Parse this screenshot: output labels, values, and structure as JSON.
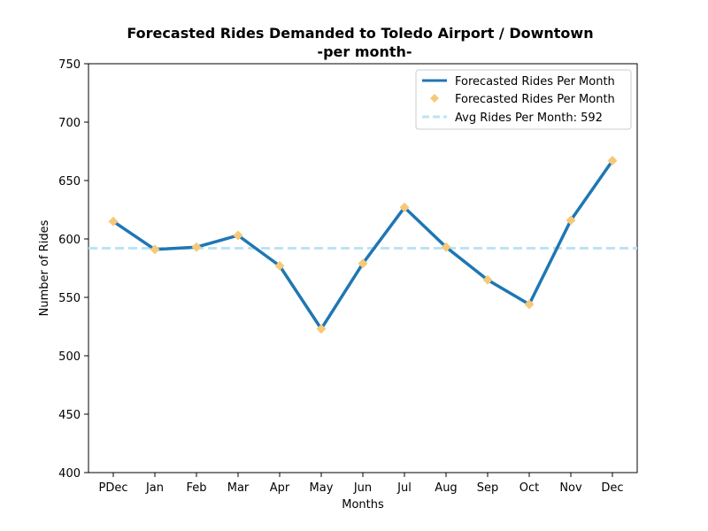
{
  "chart_data": {
    "type": "line",
    "title": "Forecasted  Rides Demanded to Toledo Airport / Downtown",
    "subtitle": "-per month-",
    "xlabel": "Months",
    "ylabel": "Number of Rides",
    "categories": [
      "PDec",
      "Jan",
      "Feb",
      "Mar",
      "Apr",
      "May",
      "Jun",
      "Jul",
      "Aug",
      "Sep",
      "Oct",
      "Nov",
      "Dec"
    ],
    "series": [
      {
        "name": "Forecasted Rides Per Month",
        "style": "line",
        "color": "#1f77b4",
        "values": [
          615,
          591,
          593,
          603,
          577,
          523,
          579,
          627,
          593,
          565,
          544,
          616,
          667
        ]
      },
      {
        "name": "Forecasted Rides Per Month",
        "style": "markers",
        "marker": "diamond",
        "color": "#f5c97a",
        "values": [
          615,
          591,
          593,
          603,
          577,
          523,
          579,
          627,
          593,
          565,
          544,
          616,
          667
        ]
      }
    ],
    "reference_line": {
      "label": "Avg Rides Per Month: 592",
      "value": 592,
      "style": "dashed",
      "color": "#bde3f5"
    },
    "ylim": [
      400,
      750
    ],
    "yticks": [
      400,
      450,
      500,
      550,
      600,
      650,
      700,
      750
    ],
    "grid": false,
    "legend_position": "top-right"
  }
}
